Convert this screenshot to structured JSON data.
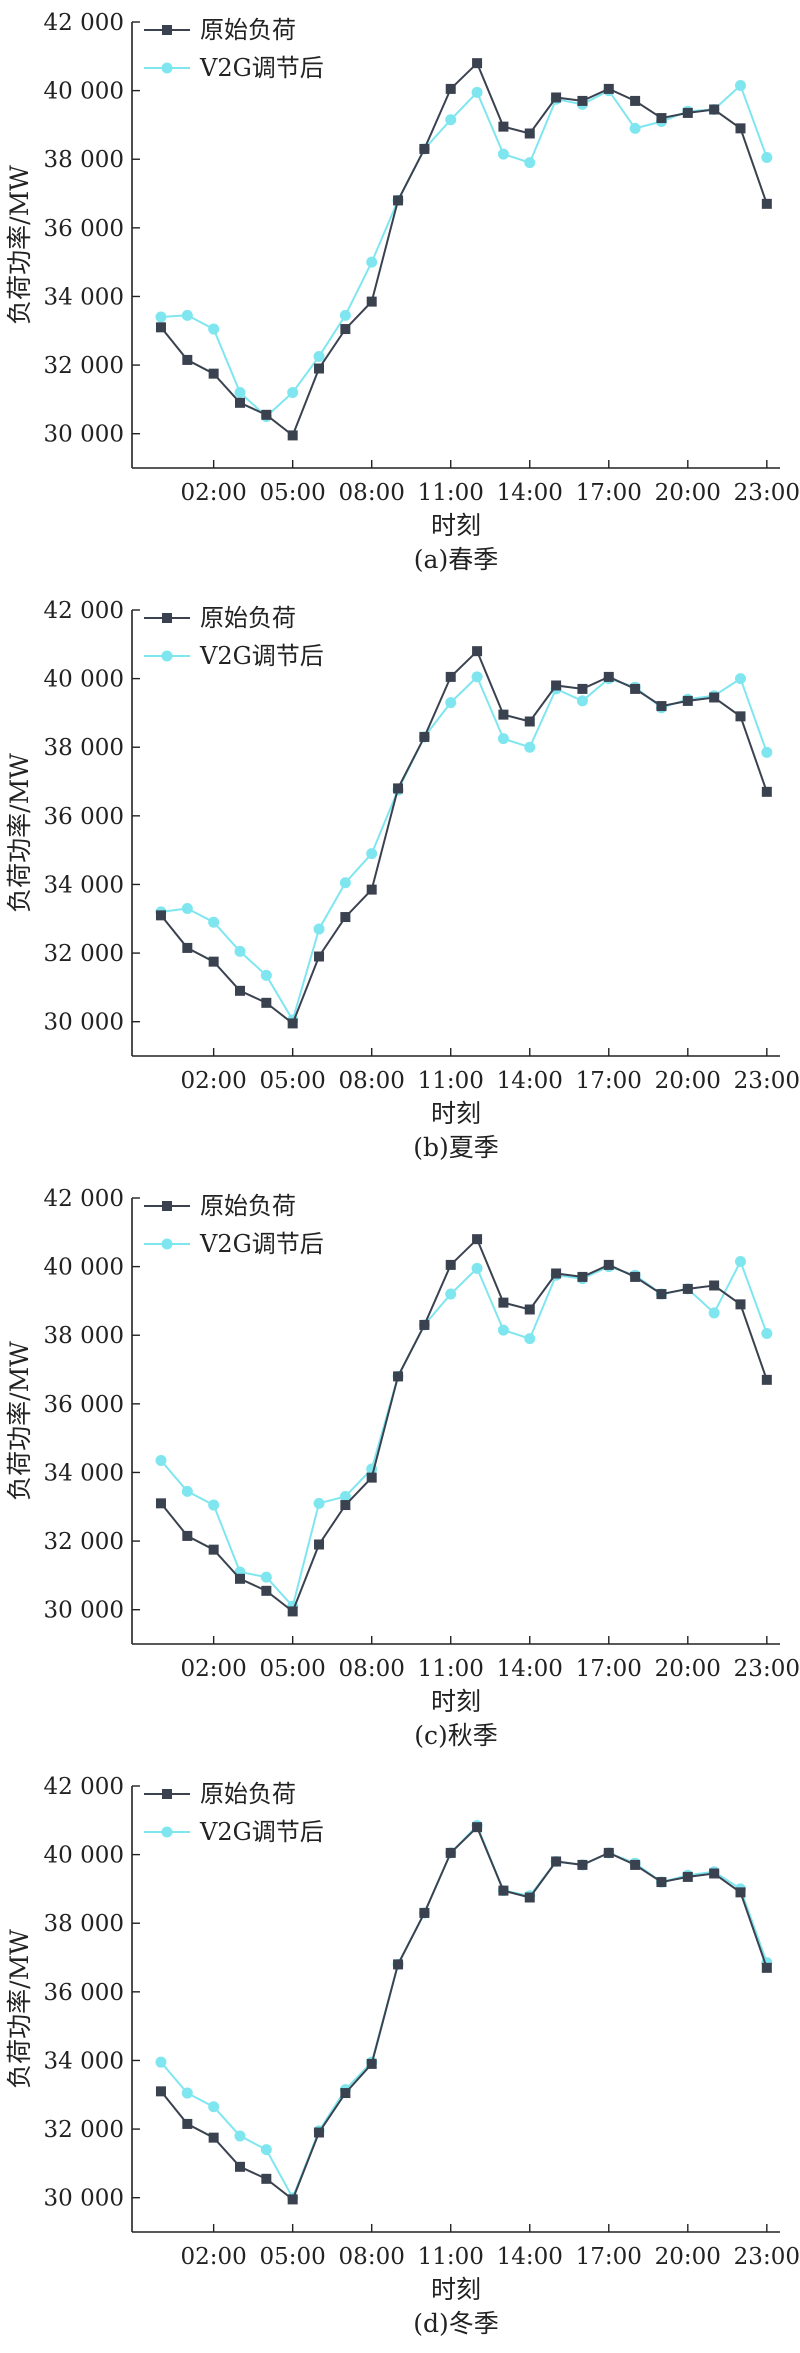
{
  "colors": {
    "original": "#3a4250",
    "v2g": "#7fe6f0",
    "axis": "#222222"
  },
  "chart_data": [
    {
      "type": "line",
      "caption": "(a)春季",
      "xlabel": "时刻",
      "ylabel": "负荷功率/MW",
      "ylim": [
        29000,
        42000
      ],
      "yticks": [
        30000,
        32000,
        34000,
        36000,
        38000,
        40000,
        42000
      ],
      "ytick_labels": [
        "30 000",
        "32 000",
        "34 000",
        "36 000",
        "38 000",
        "40 000",
        "42 000"
      ],
      "xlim": [
        -1.1,
        23.5
      ],
      "xticks": [
        2,
        5,
        8,
        11,
        14,
        17,
        20,
        23
      ],
      "xtick_labels": [
        "02:00",
        "05:00",
        "08:00",
        "11:00",
        "14:00",
        "17:00",
        "20:00",
        "23:00"
      ],
      "legend": "top-left",
      "x": [
        0,
        1,
        2,
        3,
        4,
        5,
        6,
        7,
        8,
        9,
        10,
        11,
        12,
        13,
        14,
        15,
        16,
        17,
        18,
        19,
        20,
        21,
        22,
        23
      ],
      "series": [
        {
          "name": "原始负荷",
          "marker": "square",
          "values": [
            33100,
            32150,
            31750,
            30900,
            30550,
            29950,
            31900,
            33050,
            33850,
            36800,
            38300,
            40050,
            40800,
            38950,
            38750,
            39800,
            39700,
            40050,
            39700,
            39200,
            39350,
            39450,
            38900,
            36700
          ]
        },
        {
          "name": "V2G调节后",
          "marker": "circle",
          "values": [
            33400,
            33450,
            33050,
            31200,
            30500,
            31200,
            32250,
            33450,
            35000,
            36800,
            38300,
            39150,
            39950,
            38150,
            37900,
            39750,
            39600,
            40000,
            38900,
            39100,
            39400,
            39450,
            40150,
            38050
          ]
        }
      ]
    },
    {
      "type": "line",
      "caption": "(b)夏季",
      "xlabel": "时刻",
      "ylabel": "负荷功率/MW",
      "ylim": [
        29000,
        42000
      ],
      "yticks": [
        30000,
        32000,
        34000,
        36000,
        38000,
        40000,
        42000
      ],
      "ytick_labels": [
        "30 000",
        "32 000",
        "34 000",
        "36 000",
        "38 000",
        "40 000",
        "42 000"
      ],
      "xlim": [
        -1.1,
        23.5
      ],
      "xticks": [
        2,
        5,
        8,
        11,
        14,
        17,
        20,
        23
      ],
      "xtick_labels": [
        "02:00",
        "05:00",
        "08:00",
        "11:00",
        "14:00",
        "17:00",
        "20:00",
        "23:00"
      ],
      "legend": "top-left",
      "x": [
        0,
        1,
        2,
        3,
        4,
        5,
        6,
        7,
        8,
        9,
        10,
        11,
        12,
        13,
        14,
        15,
        16,
        17,
        18,
        19,
        20,
        21,
        22,
        23
      ],
      "series": [
        {
          "name": "原始负荷",
          "marker": "square",
          "values": [
            33100,
            32150,
            31750,
            30900,
            30550,
            29950,
            31900,
            33050,
            33850,
            36800,
            38300,
            40050,
            40800,
            38950,
            38750,
            39800,
            39700,
            40050,
            39700,
            39200,
            39350,
            39450,
            38900,
            36700
          ]
        },
        {
          "name": "V2G调节后",
          "marker": "circle",
          "values": [
            33200,
            33300,
            32900,
            32050,
            31350,
            30050,
            32700,
            34050,
            34900,
            36750,
            38300,
            39300,
            40050,
            38250,
            38000,
            39700,
            39350,
            40000,
            39750,
            39150,
            39400,
            39500,
            40000,
            37850
          ]
        }
      ]
    },
    {
      "type": "line",
      "caption": "(c)秋季",
      "xlabel": "时刻",
      "ylabel": "负荷功率/MW",
      "ylim": [
        29000,
        42000
      ],
      "yticks": [
        30000,
        32000,
        34000,
        36000,
        38000,
        40000,
        42000
      ],
      "ytick_labels": [
        "30 000",
        "32 000",
        "34 000",
        "36 000",
        "38 000",
        "40 000",
        "42 000"
      ],
      "xlim": [
        -1.1,
        23.5
      ],
      "xticks": [
        2,
        5,
        8,
        11,
        14,
        17,
        20,
        23
      ],
      "xtick_labels": [
        "02:00",
        "05:00",
        "08:00",
        "11:00",
        "14:00",
        "17:00",
        "20:00",
        "23:00"
      ],
      "legend": "top-left",
      "x": [
        0,
        1,
        2,
        3,
        4,
        5,
        6,
        7,
        8,
        9,
        10,
        11,
        12,
        13,
        14,
        15,
        16,
        17,
        18,
        19,
        20,
        21,
        22,
        23
      ],
      "series": [
        {
          "name": "原始负荷",
          "marker": "square",
          "values": [
            33100,
            32150,
            31750,
            30900,
            30550,
            29950,
            31900,
            33050,
            33850,
            36800,
            38300,
            40050,
            40800,
            38950,
            38750,
            39800,
            39700,
            40050,
            39700,
            39200,
            39350,
            39450,
            38900,
            36700
          ]
        },
        {
          "name": "V2G调节后",
          "marker": "circle",
          "values": [
            34350,
            33450,
            33050,
            31100,
            30950,
            30100,
            33100,
            33300,
            34100,
            36800,
            38300,
            39200,
            39950,
            38150,
            37900,
            39750,
            39650,
            40000,
            39750,
            39200,
            39350,
            38650,
            40150,
            38050
          ]
        }
      ]
    },
    {
      "type": "line",
      "caption": "(d)冬季",
      "xlabel": "时刻",
      "ylabel": "负荷功率/MW",
      "ylim": [
        29000,
        42000
      ],
      "yticks": [
        30000,
        32000,
        34000,
        36000,
        38000,
        40000,
        42000
      ],
      "ytick_labels": [
        "30 000",
        "32 000",
        "34 000",
        "36 000",
        "38 000",
        "40 000",
        "42 000"
      ],
      "xlim": [
        -1.1,
        23.5
      ],
      "xticks": [
        2,
        5,
        8,
        11,
        14,
        17,
        20,
        23
      ],
      "xtick_labels": [
        "02:00",
        "05:00",
        "08:00",
        "11:00",
        "14:00",
        "17:00",
        "20:00",
        "23:00"
      ],
      "legend": "top-left",
      "x": [
        0,
        1,
        2,
        3,
        4,
        5,
        6,
        7,
        8,
        9,
        10,
        11,
        12,
        13,
        14,
        15,
        16,
        17,
        18,
        19,
        20,
        21,
        22,
        23
      ],
      "series": [
        {
          "name": "原始负荷",
          "marker": "square",
          "values": [
            33100,
            32150,
            31750,
            30900,
            30550,
            29950,
            31900,
            33050,
            33900,
            36800,
            38300,
            40050,
            40800,
            38950,
            38750,
            39800,
            39700,
            40050,
            39700,
            39200,
            39350,
            39450,
            38900,
            36700
          ]
        },
        {
          "name": "V2G调节后",
          "marker": "circle",
          "values": [
            33950,
            33050,
            32650,
            31800,
            31400,
            30000,
            31950,
            33150,
            33950,
            36800,
            38300,
            40050,
            40850,
            38950,
            38800,
            39800,
            39700,
            40050,
            39750,
            39200,
            39400,
            39500,
            39000,
            36850
          ]
        }
      ]
    }
  ]
}
